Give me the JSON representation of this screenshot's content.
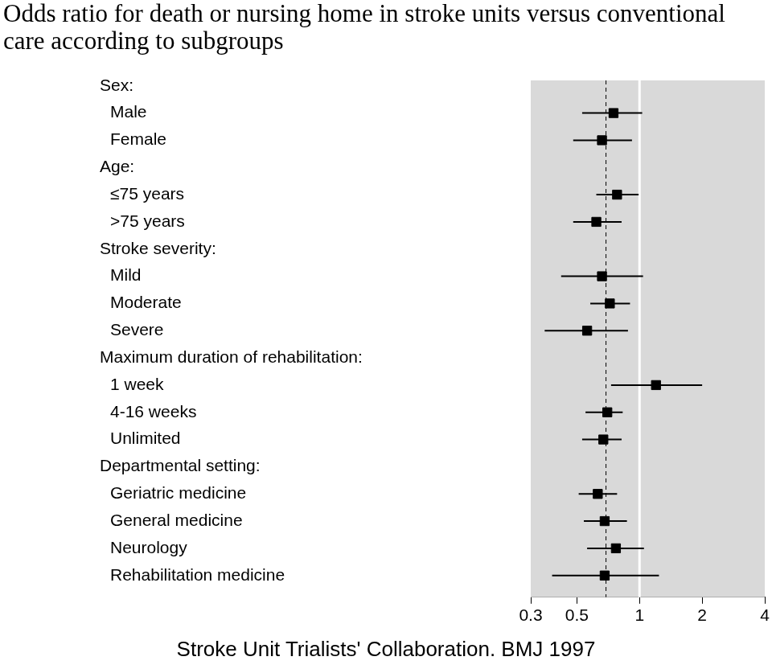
{
  "chart_data": {
    "type": "forest",
    "title": "Odds ratio for death or nursing home in stroke units versus conventional care according to subgroups",
    "source": "Stroke Unit Trialists' Collaboration. BMJ 1997",
    "log": "x",
    "grid": false,
    "xlim": [
      0.3,
      4
    ],
    "xticks": [
      0.3,
      0.5,
      1,
      2,
      4
    ],
    "reference_line": 1,
    "overall_odds_ratio": 0.69,
    "color": "#000000",
    "marker": "square",
    "groups": [
      {
        "name": "Sex:",
        "rows": [
          {
            "label": "Male",
            "odds_ratio": 0.75,
            "ci": [
              0.53,
              1.03
            ]
          },
          {
            "label": "Female",
            "odds_ratio": 0.66,
            "ci": [
              0.48,
              0.92
            ]
          }
        ]
      },
      {
        "name": "Age:",
        "rows": [
          {
            "label": "≤75 years",
            "odds_ratio": 0.78,
            "ci": [
              0.62,
              0.99
            ]
          },
          {
            "label": ">75 years",
            "odds_ratio": 0.62,
            "ci": [
              0.48,
              0.82
            ]
          }
        ]
      },
      {
        "name": "Stroke severity:",
        "rows": [
          {
            "label": "Mild",
            "odds_ratio": 0.66,
            "ci": [
              0.42,
              1.04
            ]
          },
          {
            "label": "Moderate",
            "odds_ratio": 0.72,
            "ci": [
              0.58,
              0.9
            ]
          },
          {
            "label": "Severe",
            "odds_ratio": 0.56,
            "ci": [
              0.35,
              0.88
            ]
          }
        ]
      },
      {
        "name": "Maximum duration of rehabilitation:",
        "rows": [
          {
            "label": "1 week",
            "odds_ratio": 1.2,
            "ci": [
              0.73,
              2.0
            ]
          },
          {
            "label": "4-16 weeks",
            "odds_ratio": 0.7,
            "ci": [
              0.55,
              0.83
            ]
          },
          {
            "label": "Unlimited",
            "odds_ratio": 0.67,
            "ci": [
              0.53,
              0.82
            ]
          }
        ]
      },
      {
        "name": "Departmental setting:",
        "rows": [
          {
            "label": "Geriatric medicine",
            "odds_ratio": 0.63,
            "ci": [
              0.51,
              0.78
            ]
          },
          {
            "label": "General medicine",
            "odds_ratio": 0.68,
            "ci": [
              0.54,
              0.87
            ]
          },
          {
            "label": "Neurology",
            "odds_ratio": 0.77,
            "ci": [
              0.56,
              1.05
            ]
          },
          {
            "label": "Rehabilitation medicine",
            "odds_ratio": 0.68,
            "ci": [
              0.38,
              1.24
            ]
          }
        ]
      }
    ]
  }
}
